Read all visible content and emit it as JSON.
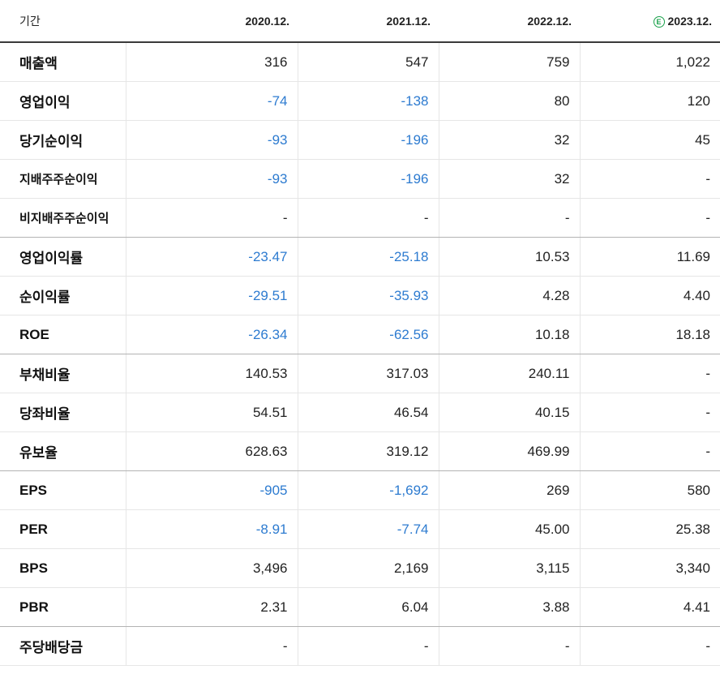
{
  "header": {
    "period_label": "기간",
    "columns": [
      "2020.12.",
      "2021.12.",
      "2022.12.",
      "2023.12."
    ],
    "estimate_badge": "E"
  },
  "colors": {
    "negative": "#2d7bd0",
    "estimate_badge": "#1aa14b"
  },
  "rows": [
    {
      "label": "매출액",
      "values": [
        "316",
        "547",
        "759",
        "1,022"
      ]
    },
    {
      "label": "영업이익",
      "values": [
        "-74",
        "-138",
        "80",
        "120"
      ]
    },
    {
      "label": "당기순이익",
      "values": [
        "-93",
        "-196",
        "32",
        "45"
      ]
    },
    {
      "label": "지배주주순이익",
      "values": [
        "-93",
        "-196",
        "32",
        "-"
      ]
    },
    {
      "label": "비지배주주순이익",
      "values": [
        "-",
        "-",
        "-",
        "-"
      ]
    },
    {
      "label": "영업이익률",
      "values": [
        "-23.47",
        "-25.18",
        "10.53",
        "11.69"
      ]
    },
    {
      "label": "순이익률",
      "values": [
        "-29.51",
        "-35.93",
        "4.28",
        "4.40"
      ]
    },
    {
      "label": "ROE",
      "values": [
        "-26.34",
        "-62.56",
        "10.18",
        "18.18"
      ]
    },
    {
      "label": "부채비율",
      "values": [
        "140.53",
        "317.03",
        "240.11",
        "-"
      ]
    },
    {
      "label": "당좌비율",
      "values": [
        "54.51",
        "46.54",
        "40.15",
        "-"
      ]
    },
    {
      "label": "유보율",
      "values": [
        "628.63",
        "319.12",
        "469.99",
        "-"
      ]
    },
    {
      "label": "EPS",
      "values": [
        "-905",
        "-1,692",
        "269",
        "580"
      ]
    },
    {
      "label": "PER",
      "values": [
        "-8.91",
        "-7.74",
        "45.00",
        "25.38"
      ]
    },
    {
      "label": "BPS",
      "values": [
        "3,496",
        "2,169",
        "3,115",
        "3,340"
      ]
    },
    {
      "label": "PBR",
      "values": [
        "2.31",
        "6.04",
        "3.88",
        "4.41"
      ]
    },
    {
      "label": "주당배당금",
      "values": [
        "-",
        "-",
        "-",
        "-"
      ]
    }
  ]
}
